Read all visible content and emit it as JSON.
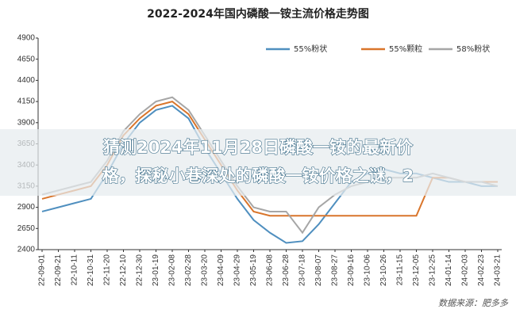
{
  "chart_data": {
    "type": "line",
    "title": "2022-2024年国内磷酸一铵主流价格走势图",
    "categories": [
      "22-09-01",
      "22-09-21",
      "22-10-11",
      "22-10-31",
      "22-11-20",
      "22-12-10",
      "22-12-30",
      "23-01-19",
      "23-02-08",
      "23-02-28",
      "23-03-20",
      "23-04-09",
      "23-04-29",
      "23-05-19",
      "23-06-08",
      "23-06-28",
      "23-07-18",
      "23-08-07",
      "23-08-27",
      "23-09-16",
      "23-10-06",
      "23-10-26",
      "23-11-15",
      "23-12-05",
      "23-12-25",
      "24-01-14",
      "24-02-03",
      "24-02-23",
      "24-03-21"
    ],
    "series": [
      {
        "name": "55%粉状",
        "color": "#4f8fbf",
        "values": [
          2850,
          2900,
          2950,
          3000,
          3300,
          3650,
          3900,
          4050,
          4100,
          3950,
          3600,
          3300,
          3000,
          2750,
          2600,
          2480,
          2500,
          2700,
          2950,
          3200,
          3300,
          3350,
          3300,
          3300,
          3250,
          3200,
          3200,
          3150,
          3150
        ]
      },
      {
        "name": "55%颗粒",
        "color": "#d9752b",
        "values": [
          3000,
          3050,
          3100,
          3150,
          3400,
          3750,
          3950,
          4100,
          4150,
          4000,
          3700,
          3400,
          3100,
          2850,
          2800,
          2800,
          2800,
          2800,
          2800,
          2800,
          2800,
          2800,
          2800,
          2800,
          3250,
          3250,
          3200,
          3200,
          3200
        ]
      },
      {
        "name": "58%粉状",
        "color": "#a6a6a6",
        "values": [
          3050,
          3100,
          3150,
          3200,
          3450,
          3800,
          4000,
          4150,
          4200,
          4050,
          3750,
          3450,
          3150,
          2900,
          2850,
          2850,
          2600,
          2900,
          3050,
          3150,
          3200,
          3250,
          3250,
          3250,
          3300,
          3250,
          3200,
          3200,
          3150
        ]
      }
    ],
    "ylim": [
      2400,
      4900
    ],
    "yticks": [
      2400,
      2650,
      2900,
      3150,
      3400,
      3650,
      3900,
      4150,
      4400,
      4650,
      4900
    ],
    "source": "数据来源：肥多多"
  },
  "banner": {
    "lines": [
      "猜测2024年11月28日磷酸一铵的最新价",
      "格，探秘小巷深处的磷酸一铵价格之谜，2"
    ]
  }
}
